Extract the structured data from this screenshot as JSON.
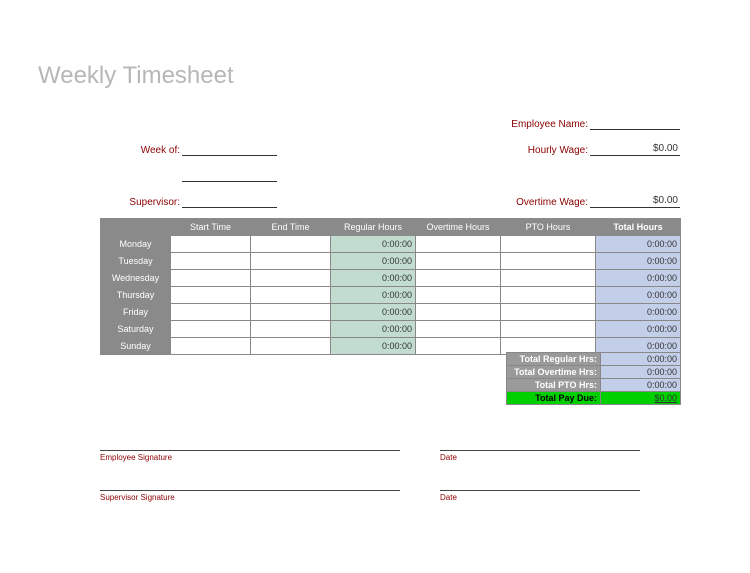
{
  "title": "Weekly Timesheet",
  "labels": {
    "week_of": "Week of:",
    "supervisor": "Supervisor:",
    "employee_name": "Employee Name:",
    "hourly_wage": "Hourly Wage:",
    "overtime_wage": "Overtime Wage:"
  },
  "values": {
    "week_of": "",
    "supervisor": "",
    "employee_name": "",
    "hourly_wage": "$0.00",
    "overtime_wage": "$0.00"
  },
  "columns": {
    "day": "",
    "start": "Start Time",
    "end": "End Time",
    "regular": "Regular Hours",
    "overtime": "Overtime Hours",
    "pto": "PTO Hours",
    "total": "Total Hours"
  },
  "rows": [
    {
      "day": "Monday",
      "start": "",
      "end": "",
      "regular": "0:00:00",
      "overtime": "",
      "pto": "",
      "total": "0:00:00"
    },
    {
      "day": "Tuesday",
      "start": "",
      "end": "",
      "regular": "0:00:00",
      "overtime": "",
      "pto": "",
      "total": "0:00:00"
    },
    {
      "day": "Wednesday",
      "start": "",
      "end": "",
      "regular": "0:00:00",
      "overtime": "",
      "pto": "",
      "total": "0:00:00"
    },
    {
      "day": "Thursday",
      "start": "",
      "end": "",
      "regular": "0:00:00",
      "overtime": "",
      "pto": "",
      "total": "0:00:00"
    },
    {
      "day": "Friday",
      "start": "",
      "end": "",
      "regular": "0:00:00",
      "overtime": "",
      "pto": "",
      "total": "0:00:00"
    },
    {
      "day": "Saturday",
      "start": "",
      "end": "",
      "regular": "0:00:00",
      "overtime": "",
      "pto": "",
      "total": "0:00:00"
    },
    {
      "day": "Sunday",
      "start": "",
      "end": "",
      "regular": "0:00:00",
      "overtime": "",
      "pto": "",
      "total": "0:00:00"
    }
  ],
  "summary": {
    "total_regular_label": "Total Regular Hrs:",
    "total_regular": "0:00:00",
    "total_overtime_label": "Total Overtime Hrs:",
    "total_overtime": "0:00:00",
    "total_pto_label": "Total PTO Hrs:",
    "total_pto": "0:00:00",
    "total_pay_label": "Total Pay Due:",
    "total_pay": "$0.00"
  },
  "signatures": {
    "employee": "Employee Signature",
    "supervisor": "Supervisor Signature",
    "date": "Date"
  },
  "colors": {
    "title": "#b7b7b7",
    "label": "#8b0000",
    "header_bg": "#8a8a8a",
    "header_fg": "#ffffff",
    "regular_bg": "#c2ddd0",
    "total_bg": "#c3cfe9",
    "summary_label_bg": "#9a9a9a",
    "pay_bg": "#00d000",
    "border": "#888888"
  }
}
